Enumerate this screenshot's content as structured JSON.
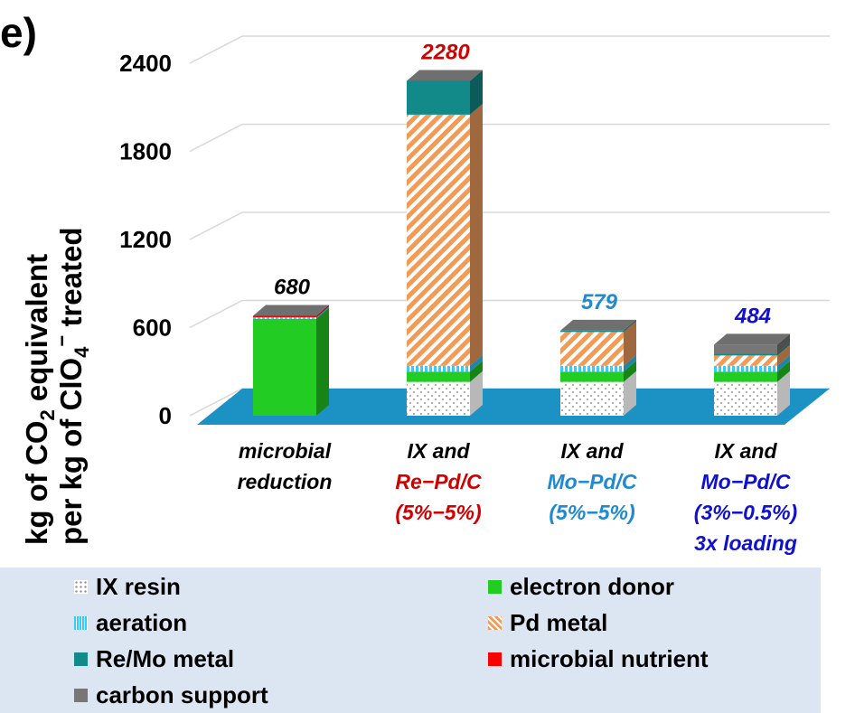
{
  "panel_label": "e)",
  "y_axis": {
    "line1": "kg of CO",
    "line1_sub": "2",
    "line1_rest": " equivalent",
    "line2": "per kg of ClO",
    "line2_sub": "4",
    "line2_sup": "−",
    "line2_rest": " treated"
  },
  "chart_data": {
    "type": "bar",
    "stacked": true,
    "style": "3d",
    "ylim": [
      0,
      2400
    ],
    "yticks": [
      "0",
      "600",
      "1200",
      "1800",
      "2400"
    ],
    "grid": true,
    "legend_position": "bottom",
    "categories": [
      {
        "lines": [
          "microbial",
          "reduction"
        ],
        "colors": [
          "#000000",
          "#000000"
        ]
      },
      {
        "lines": [
          "IX and",
          "Re−Pd/C",
          "(5%−5%)"
        ],
        "colors": [
          "#000000",
          "#d00000",
          "#d00000"
        ]
      },
      {
        "lines": [
          "IX and",
          "Mo−Pd/C",
          "(5%−5%)"
        ],
        "colors": [
          "#000000",
          "#1f8ad0",
          "#1f8ad0"
        ]
      },
      {
        "lines": [
          "IX and",
          "Mo−Pd/C",
          "(3%−0.5%)",
          "3x loading"
        ],
        "colors": [
          "#000000",
          "#1010d0",
          "#1010d0",
          "#1010d0"
        ]
      }
    ],
    "totals": [
      {
        "label": "680",
        "value": 680,
        "color": "#000000"
      },
      {
        "label": "2280",
        "value": 2280,
        "color": "#d00000"
      },
      {
        "label": "579",
        "value": 579,
        "color": "#1f8ad0"
      },
      {
        "label": "484",
        "value": 484,
        "color": "#1010d0"
      }
    ],
    "series": [
      {
        "name": "IX resin",
        "color": "#ffffff",
        "pattern": "dots",
        "values": [
          0,
          230,
          230,
          230
        ]
      },
      {
        "name": "electron donor",
        "color": "#22cc22",
        "values": [
          660,
          70,
          70,
          70
        ]
      },
      {
        "name": "aeration",
        "color": "#33ccff",
        "pattern": "vstripes",
        "values": [
          10,
          40,
          40,
          40
        ]
      },
      {
        "name": "Pd metal",
        "color": "#f5a060",
        "pattern": "diag",
        "values": [
          0,
          1710,
          230,
          70
        ]
      },
      {
        "name": "Re/Mo metal",
        "color": "#138a8a",
        "values": [
          0,
          230,
          9,
          14
        ]
      },
      {
        "name": "microbial nutrient",
        "color": "#ff0000",
        "values": [
          10,
          0,
          0,
          0
        ]
      },
      {
        "name": "carbon support",
        "color": "#777777",
        "values": [
          0,
          0,
          0,
          60
        ]
      }
    ]
  }
}
